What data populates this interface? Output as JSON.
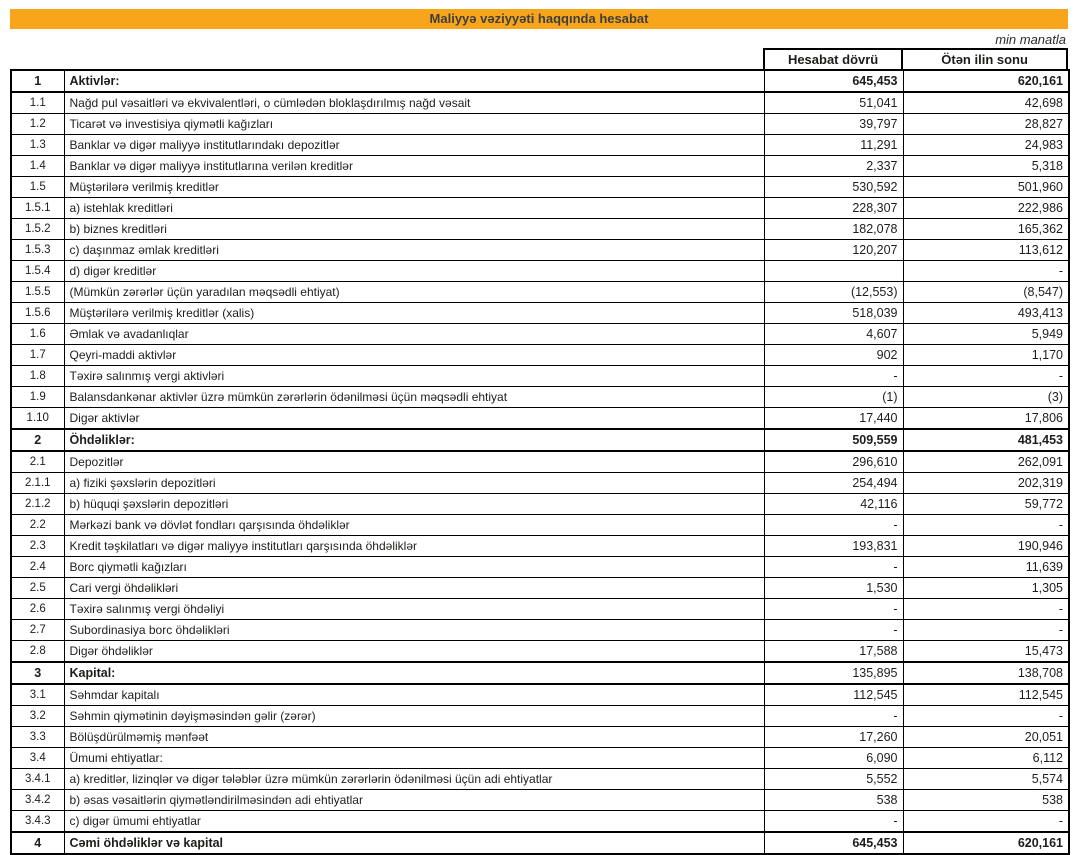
{
  "header": {
    "title": "Maliyyə vəziyyəti haqqında hesabat",
    "unit_note": "min manatla",
    "accent_color": "#F9A51C"
  },
  "table": {
    "columns": [
      "Hesabat dövrü",
      "Ötən ilin sonu"
    ],
    "rows": [
      {
        "num": "1",
        "label": "Aktivlər:",
        "current": "645,453",
        "prior": "620,161",
        "section": true,
        "values_bold": true
      },
      {
        "num": "1.1",
        "label": "Nağd pul vəsaitləri və ekvivalentləri, o cümlədən bloklaşdırılmış nağd vəsait",
        "current": "51,041",
        "prior": "42,698"
      },
      {
        "num": "1.2",
        "label": "Ticarət və investisiya qiymətli kağızları",
        "current": "39,797",
        "prior": "28,827"
      },
      {
        "num": "1.3",
        "label": "Banklar və digər maliyyə institutlarındakı depozitlər",
        "current": "11,291",
        "prior": "24,983"
      },
      {
        "num": "1.4",
        "label": "Banklar və digər maliyyə institutlarına verilən kreditlər",
        "current": "2,337",
        "prior": "5,318"
      },
      {
        "num": "1.5",
        "label": "Müştərilərə verilmiş kreditlər",
        "current": "530,592",
        "prior": "501,960"
      },
      {
        "num": "1.5.1",
        "label": "a) istehlak kreditləri",
        "current": "228,307",
        "prior": "222,986"
      },
      {
        "num": "1.5.2",
        "label": "b) biznes kreditləri",
        "current": "182,078",
        "prior": "165,362"
      },
      {
        "num": "1.5.3",
        "label": "c) daşınmaz əmlak kreditləri",
        "current": "120,207",
        "prior": "113,612"
      },
      {
        "num": "1.5.4",
        "label": "d) digər kreditlər",
        "current": "",
        "prior": "-"
      },
      {
        "num": "1.5.5",
        "label": "(Mümkün zərərlər üçün yaradılan məqsədli ehtiyat)",
        "current": "(12,553)",
        "prior": "(8,547)"
      },
      {
        "num": "1.5.6",
        "label": "Müştərilərə verilmiş kreditlər (xalis)",
        "current": "518,039",
        "prior": "493,413"
      },
      {
        "num": "1.6",
        "label": "Əmlak və avadanlıqlar",
        "current": "4,607",
        "prior": "5,949"
      },
      {
        "num": "1.7",
        "label": "Qeyri-maddi aktivlər",
        "current": "902",
        "prior": "1,170"
      },
      {
        "num": "1.8",
        "label": "Təxirə salınmış vergi aktivləri",
        "current": "-",
        "prior": "-"
      },
      {
        "num": "1.9",
        "label": "Balansdankənar aktivlər üzrə mümkün zərərlərin ödənilməsi üçün məqsədli ehtiyat",
        "current": "(1)",
        "prior": "(3)"
      },
      {
        "num": "1.10",
        "label": "Digər aktivlər",
        "current": "17,440",
        "prior": "17,806"
      },
      {
        "num": "2",
        "label": "Öhdəliklər:",
        "current": "509,559",
        "prior": "481,453",
        "section": true,
        "values_bold": true
      },
      {
        "num": "2.1",
        "label": "Depozitlər",
        "current": "296,610",
        "prior": "262,091"
      },
      {
        "num": "2.1.1",
        "label": "a) fiziki şəxslərin depozitləri",
        "current": "254,494",
        "prior": "202,319"
      },
      {
        "num": "2.1.2",
        "label": "b) hüquqi şəxslərin depozitləri",
        "current": "42,116",
        "prior": "59,772"
      },
      {
        "num": "2.2",
        "label": "Mərkəzi bank və dövlət fondları qarşısında öhdəliklər",
        "current": "-",
        "prior": "-"
      },
      {
        "num": "2.3",
        "label": "Kredit təşkilatları və digər maliyyə institutları qarşısında öhdəliklər",
        "current": "193,831",
        "prior": "190,946"
      },
      {
        "num": "2.4",
        "label": "Borc qiymətli kağızları",
        "current": "-",
        "prior": "11,639"
      },
      {
        "num": "2.5",
        "label": "Cari vergi öhdəlikləri",
        "current": "1,530",
        "prior": "1,305"
      },
      {
        "num": "2.6",
        "label": "Təxirə salınmış vergi öhdəliyi",
        "current": "-",
        "prior": "-"
      },
      {
        "num": "2.7",
        "label": "Subordinasiya borc öhdəlikləri",
        "current": "-",
        "prior": "-"
      },
      {
        "num": "2.8",
        "label": "Digər öhdəliklər",
        "current": "17,588",
        "prior": "15,473"
      },
      {
        "num": "3",
        "label": "Kapital:",
        "current": "135,895",
        "prior": "138,708",
        "section": true
      },
      {
        "num": "3.1",
        "label": "Səhmdar kapitalı",
        "current": "112,545",
        "prior": "112,545"
      },
      {
        "num": "3.2",
        "label": "Səhmin qiymətinin dəyişməsindən gəlir (zərər)",
        "current": "-",
        "prior": "-"
      },
      {
        "num": "3.3",
        "label": "Bölüşdürülməmiş mənfəət",
        "current": "17,260",
        "prior": "20,051"
      },
      {
        "num": "3.4",
        "label": "Ümumi ehtiyatlar:",
        "current": "6,090",
        "prior": "6,112"
      },
      {
        "num": "3.4.1",
        "label": "a) kreditlər, lizinqlər və digər tələblər üzrə mümkün zərərlərin ödənilməsi üçün adi ehtiyatlar",
        "current": "5,552",
        "prior": "5,574"
      },
      {
        "num": "3.4.2",
        "label": "b) əsas vəsaitlərin qiymətləndirilməsindən adi ehtiyatlar",
        "current": "538",
        "prior": "538"
      },
      {
        "num": "3.4.3",
        "label": "c) digər ümumi ehtiyatlar",
        "current": "-",
        "prior": "-"
      },
      {
        "num": "4",
        "label": "Cəmi öhdəliklər və kapital",
        "current": "645,453",
        "prior": "620,161",
        "section": true,
        "values_bold": true
      }
    ]
  }
}
